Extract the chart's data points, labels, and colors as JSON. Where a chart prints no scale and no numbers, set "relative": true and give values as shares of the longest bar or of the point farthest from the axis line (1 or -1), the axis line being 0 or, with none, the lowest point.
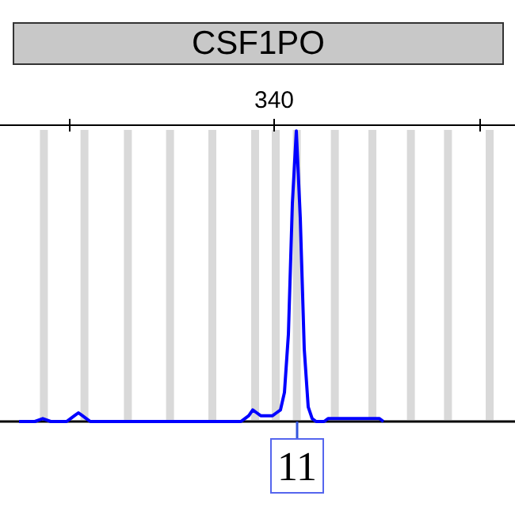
{
  "chart_data": {
    "type": "line",
    "title": "CSF1PO",
    "relative": true,
    "categories": [
      null,
      null,
      null,
      null,
      null,
      null,
      null,
      null,
      null,
      null,
      null,
      null,
      null,
      null,
      null,
      null,
      null,
      null,
      null,
      null,
      null,
      null,
      null,
      null,
      null,
      null,
      null,
      null,
      null,
      null,
      null,
      null,
      null,
      null,
      null,
      null,
      null,
      null,
      null,
      null,
      null,
      null,
      null,
      null,
      null,
      null,
      null,
      null,
      null,
      null,
      null,
      null,
      null,
      null,
      null,
      null,
      null,
      null,
      null,
      null,
      null,
      null,
      null,
      null,
      null,
      null,
      null,
      null,
      null,
      null,
      null,
      null,
      null,
      null,
      null,
      null,
      null,
      null,
      null,
      null,
      null,
      null,
      null,
      null,
      null,
      null,
      null,
      null,
      null,
      null,
      null,
      null,
      null
    ],
    "series": [
      {
        "color": "#0000ff",
        "values": [
          0,
          0,
          0,
          0,
          0,
          0.005,
          0.01,
          0.005,
          0,
          0,
          0,
          0,
          0,
          0.01,
          0.02,
          0.03,
          0.02,
          0.01,
          0,
          0,
          0,
          0,
          0,
          0,
          0,
          0,
          0,
          0,
          0,
          0,
          0,
          0,
          0,
          0,
          0,
          0,
          0,
          0,
          0,
          0,
          0,
          0,
          0,
          0,
          0,
          0,
          0,
          0,
          0,
          0,
          0,
          0,
          0,
          0,
          0,
          0,
          0,
          0.01,
          0.02,
          0.04,
          0.03,
          0.02,
          0.02,
          0.02,
          0.02,
          0.03,
          0.04,
          0.1,
          0.3,
          0.75,
          1,
          0.7,
          0.25,
          0.05,
          0.01,
          0,
          0,
          0,
          0.01,
          0.01,
          0.01,
          0.01,
          0.01,
          0.01,
          0.01,
          0.01,
          0.01,
          0.01,
          0.01,
          0.01,
          0.01,
          0.01,
          0
        ]
      }
    ],
    "annotations": [
      "340",
      "11"
    ]
  }
}
